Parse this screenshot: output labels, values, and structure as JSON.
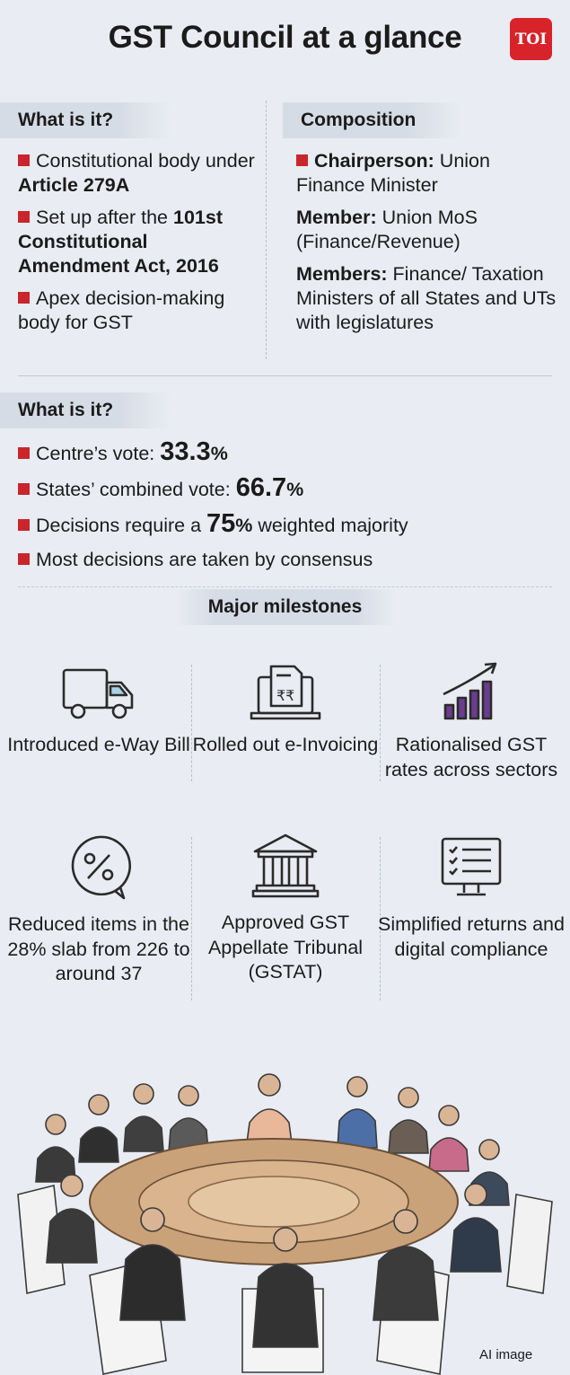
{
  "title": "GST Council at a glance",
  "logo": "TOI",
  "what": {
    "heading": "What is it?",
    "items": [
      {
        "pre": "Constitutional body under ",
        "bold": "Article 279A",
        "post": ""
      },
      {
        "pre": "Set up after the ",
        "bold": "101st Constitutional Amendment Act, 2016",
        "post": ""
      },
      {
        "pre": "Apex decision-making body for GST",
        "bold": "",
        "post": ""
      }
    ]
  },
  "composition": {
    "heading": "Composition",
    "items": [
      {
        "bold": "Chairperson:",
        "text": " Union Finance Minister"
      },
      {
        "bold": "Member:",
        "text": " Union MoS (Finance/Revenue)"
      },
      {
        "bold": "Members:",
        "text": " Finance/ Taxation Ministers of all States and UTs with legislatures"
      }
    ]
  },
  "voting": {
    "heading": "What is it?",
    "rows": [
      {
        "pre": "Centre’s vote: ",
        "num": "33.3",
        "pct": "%",
        "post": ""
      },
      {
        "pre": "States’ combined vote: ",
        "num": "66.7",
        "pct": "%",
        "post": ""
      },
      {
        "pre": "Decisions require a ",
        "num": "75",
        "pct": "%",
        "post": " weighted majority"
      },
      {
        "pre": "Most decisions are taken by consensus",
        "num": "",
        "pct": "",
        "post": ""
      }
    ]
  },
  "milestones": {
    "heading": "Major milestones",
    "items": [
      {
        "icon": "truck-icon",
        "label": "Introduced e-Way Bill"
      },
      {
        "icon": "invoice-laptop-icon",
        "label": "Rolled out e-Invoicing"
      },
      {
        "icon": "growth-chart-icon",
        "label": "Rationalised GST rates across sectors"
      },
      {
        "icon": "percent-tag-icon",
        "label": "Reduced items in the 28% slab from 226 to around 37"
      },
      {
        "icon": "courthouse-icon",
        "label": "Approved GST Appellate Tribunal (GSTAT)"
      },
      {
        "icon": "checklist-monitor-icon",
        "label": "Simplified returns and digital compliance"
      }
    ]
  },
  "caption": "AI image",
  "colors": {
    "accent": "#c8262c",
    "icon_purple": "#6a3d8f",
    "background": "#e9ecf2"
  }
}
